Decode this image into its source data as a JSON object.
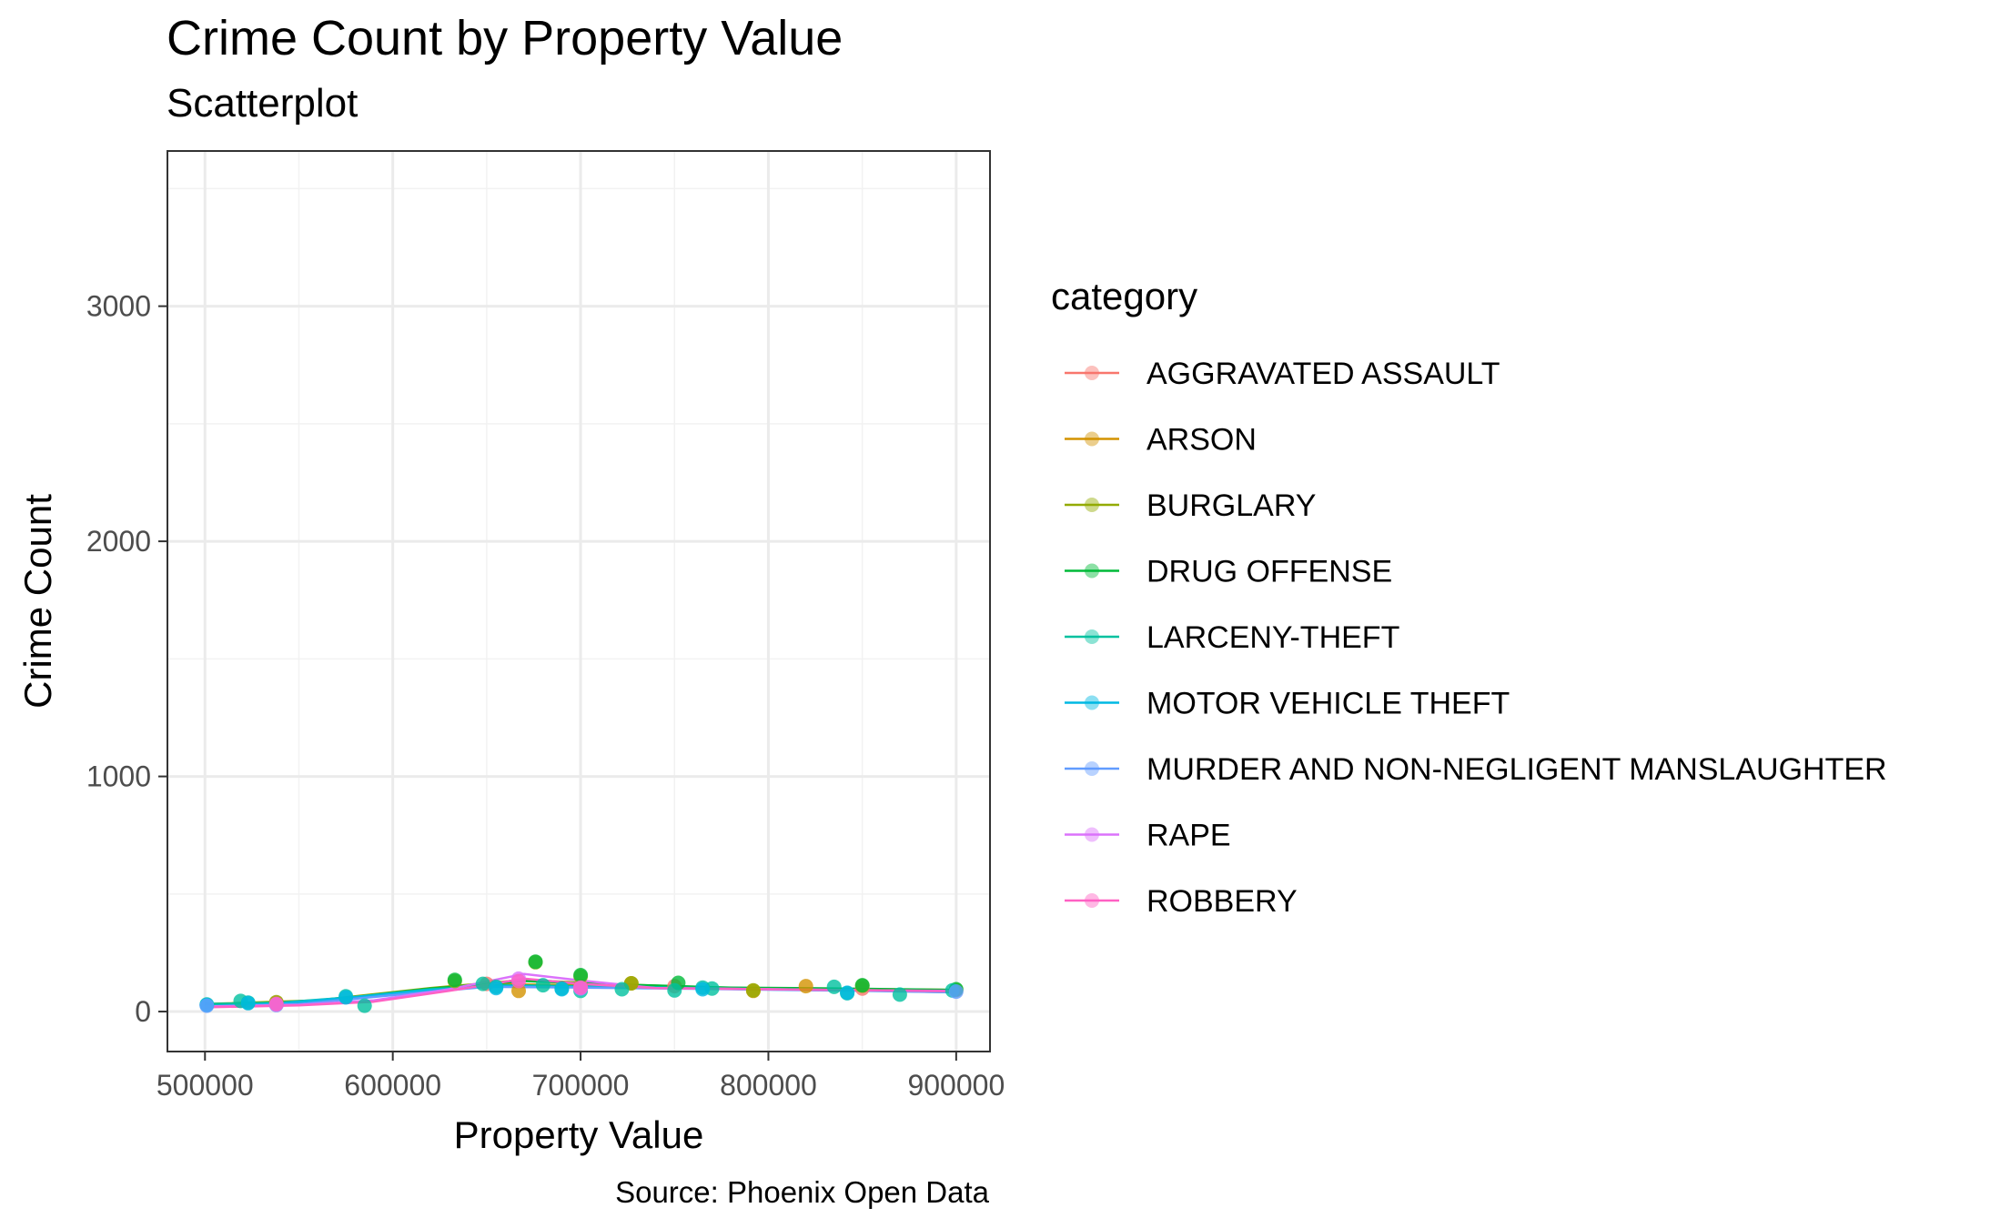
{
  "chart_data": {
    "type": "scatter",
    "title": "Crime Count by Property Value",
    "subtitle": "Scatterplot",
    "caption": "Source: Phoenix Open Data",
    "xlabel": "Property Value",
    "ylabel": "Crime Count",
    "xlim": [
      480000,
      918000
    ],
    "ylim": [
      -170,
      3660
    ],
    "x_ticks": [
      500000,
      600000,
      700000,
      800000,
      900000
    ],
    "x_tick_labels": [
      "500000",
      "600000",
      "700000",
      "800000",
      "900000"
    ],
    "y_ticks": [
      0,
      1000,
      2000,
      3000
    ],
    "y_tick_labels": [
      "0",
      "1000",
      "2000",
      "3000"
    ],
    "grid": true,
    "legend": {
      "title": "category",
      "placement": "right"
    },
    "series": [
      {
        "name": "AGGRAVATED ASSAULT",
        "color": "#F8766D",
        "points": [
          [
            538000,
            38
          ],
          [
            650000,
            118
          ],
          [
            700000,
            108
          ],
          [
            750000,
            108
          ],
          [
            850000,
            98
          ]
        ],
        "smooth": [
          [
            500000,
            30
          ],
          [
            560000,
            45
          ],
          [
            610000,
            85
          ],
          [
            650000,
            118
          ],
          [
            700000,
            110
          ],
          [
            760000,
            102
          ],
          [
            820000,
            98
          ],
          [
            900000,
            92
          ]
        ]
      },
      {
        "name": "ARSON",
        "color": "#D39200",
        "points": [
          [
            667000,
            88
          ],
          [
            727000,
            120
          ],
          [
            792000,
            88
          ],
          [
            820000,
            108
          ]
        ],
        "smooth": [
          [
            500000,
            30
          ],
          [
            560000,
            42
          ],
          [
            610000,
            82
          ],
          [
            660000,
            115
          ],
          [
            720000,
            112
          ],
          [
            780000,
            100
          ],
          [
            840000,
            96
          ],
          [
            900000,
            92
          ]
        ]
      },
      {
        "name": "BURGLARY",
        "color": "#93AA00",
        "points": [
          [
            538000,
            40
          ],
          [
            633000,
            130
          ],
          [
            676000,
            210
          ],
          [
            700000,
            150
          ],
          [
            727000,
            120
          ],
          [
            792000,
            90
          ],
          [
            850000,
            110
          ],
          [
            900000,
            92
          ]
        ],
        "smooth": [
          [
            500000,
            32
          ],
          [
            560000,
            48
          ],
          [
            620000,
            100
          ],
          [
            670000,
            135
          ],
          [
            720000,
            115
          ],
          [
            780000,
            100
          ],
          [
            840000,
            96
          ],
          [
            900000,
            90
          ]
        ]
      },
      {
        "name": "DRUG OFFENSE",
        "color": "#00BA38",
        "points": [
          [
            633000,
            135
          ],
          [
            676000,
            212
          ],
          [
            700000,
            155
          ],
          [
            752000,
            122
          ],
          [
            850000,
            112
          ],
          [
            900000,
            95
          ]
        ],
        "smooth": [
          [
            500000,
            28
          ],
          [
            560000,
            44
          ],
          [
            620000,
            98
          ],
          [
            670000,
            130
          ],
          [
            720000,
            115
          ],
          [
            780000,
            102
          ],
          [
            840000,
            98
          ],
          [
            900000,
            92
          ]
        ]
      },
      {
        "name": "LARCENY-THEFT",
        "color": "#00C19F",
        "points": [
          [
            501000,
            30
          ],
          [
            519000,
            45
          ],
          [
            523000,
            38
          ],
          [
            575000,
            65
          ],
          [
            585000,
            25
          ],
          [
            648000,
            118
          ],
          [
            655000,
            105
          ],
          [
            680000,
            112
          ],
          [
            690000,
            98
          ],
          [
            700000,
            88
          ],
          [
            722000,
            95
          ],
          [
            750000,
            90
          ],
          [
            765000,
            102
          ],
          [
            770000,
            98
          ],
          [
            835000,
            105
          ],
          [
            842000,
            78
          ],
          [
            870000,
            72
          ],
          [
            898000,
            90
          ]
        ],
        "smooth": [
          [
            500000,
            32
          ],
          [
            540000,
            38
          ],
          [
            580000,
            62
          ],
          [
            620000,
            95
          ],
          [
            660000,
            112
          ],
          [
            700000,
            108
          ],
          [
            740000,
            104
          ],
          [
            780000,
            98
          ],
          [
            820000,
            94
          ],
          [
            860000,
            88
          ],
          [
            900000,
            82
          ]
        ]
      },
      {
        "name": "MOTOR VEHICLE THEFT",
        "color": "#00B9E3",
        "points": [
          [
            501000,
            28
          ],
          [
            523000,
            36
          ],
          [
            538000,
            30
          ],
          [
            575000,
            60
          ],
          [
            655000,
            100
          ],
          [
            690000,
            95
          ],
          [
            765000,
            95
          ],
          [
            842000,
            80
          ]
        ],
        "smooth": [
          [
            500000,
            22
          ],
          [
            540000,
            35
          ],
          [
            580000,
            62
          ],
          [
            620000,
            92
          ],
          [
            660000,
            108
          ],
          [
            700000,
            104
          ],
          [
            760000,
            98
          ],
          [
            820000,
            92
          ],
          [
            900000,
            85
          ]
        ]
      },
      {
        "name": "MURDER AND NON-NEGLIGENT MANSLAUGHTER",
        "color": "#619CFF",
        "points": [
          [
            501000,
            25
          ],
          [
            538000,
            28
          ],
          [
            700000,
            98
          ],
          [
            900000,
            85
          ]
        ],
        "smooth": [
          [
            500000,
            20
          ],
          [
            550000,
            32
          ],
          [
            600000,
            70
          ],
          [
            650000,
            105
          ],
          [
            700000,
            102
          ],
          [
            780000,
            95
          ],
          [
            850000,
            88
          ],
          [
            900000,
            82
          ]
        ]
      },
      {
        "name": "RAPE",
        "color": "#DB72FB",
        "points": [
          [
            538000,
            30
          ],
          [
            667000,
            140
          ],
          [
            700000,
            100
          ]
        ],
        "smooth": [
          [
            500000,
            22
          ],
          [
            550000,
            28
          ],
          [
            590000,
            48
          ],
          [
            630000,
            95
          ],
          [
            670000,
            160
          ],
          [
            700000,
            132
          ],
          [
            740000,
            100
          ],
          [
            800000,
            95
          ],
          [
            860000,
            90
          ],
          [
            900000,
            88
          ]
        ]
      },
      {
        "name": "ROBBERY",
        "color": "#FF61C3",
        "points": [
          [
            538000,
            32
          ],
          [
            667000,
            130
          ],
          [
            700000,
            102
          ]
        ],
        "smooth": [
          [
            500000,
            18
          ],
          [
            550000,
            26
          ],
          [
            590000,
            42
          ],
          [
            630000,
            88
          ],
          [
            670000,
            140
          ],
          [
            700000,
            118
          ],
          [
            740000,
            100
          ],
          [
            800000,
            95
          ],
          [
            860000,
            90
          ],
          [
            900000,
            86
          ]
        ]
      }
    ]
  }
}
